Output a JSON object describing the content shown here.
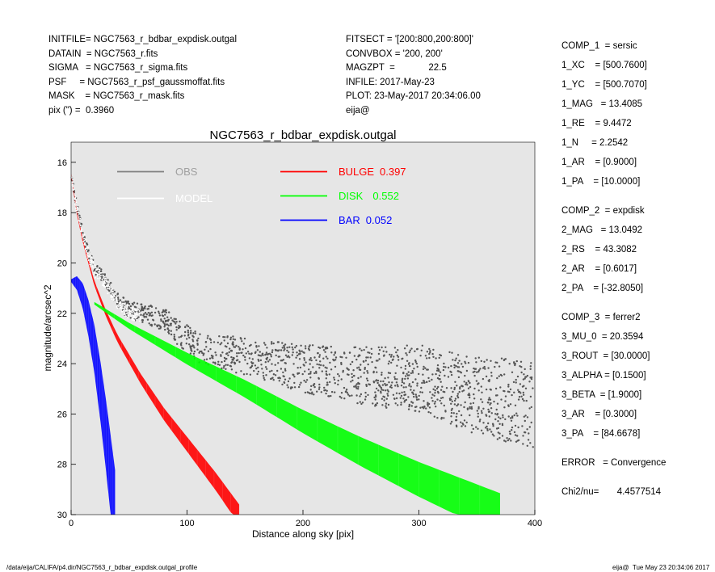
{
  "header_left": [
    "INITFILE= NGC7563_r_bdbar_expdisk.outgal",
    "DATAIN  = NGC7563_r.fits",
    "SIGMA   = NGC7563_r_sigma.fits",
    "PSF     = NGC7563_r_psf_gaussmoffat.fits",
    "MASK    = NGC7563_r_mask.fits",
    "pix (\") =  0.3960"
  ],
  "header_mid": [
    "FITSECT = '[200:800,200:800]'",
    "CONVBOX = '200, 200'",
    "MAGZPT  =             22.5",
    "INFILE: 2017-May-23",
    "PLOT: 23-May-2017 20:34:06.00",
    "eija@"
  ],
  "params": [
    "COMP_1  = sersic",
    "1_XC    = [500.7600]",
    "1_YC    = [500.7070]",
    "1_MAG   = 13.4085",
    "1_RE    = 9.4472",
    "1_N     = 2.2542",
    "1_AR    = [0.9000]",
    "1_PA    = [10.0000]",
    "",
    "COMP_2  = expdisk",
    "2_MAG   = 13.0492",
    "2_RS    = 43.3082",
    "2_AR    = [0.6017]",
    "2_PA    = [-32.8050]",
    "",
    "COMP_3  = ferrer2",
    "3_MU_0  = 20.3594",
    "3_ROUT  = [30.0000]",
    "3_ALPHA = [0.1500]",
    "3_BETA  = [1.9000]",
    "3_AR    = [0.3000]",
    "3_PA    = [84.6678]",
    "",
    "ERROR   = Convergence",
    "",
    "Chi2/nu=       4.4577514"
  ],
  "footer_left": "/data/eija/CALIFA/p4.dir/NGC7563_r_bdbar_expdisk.outgal_profile",
  "footer_right": "eija@  Tue May 23 20:34:06 2017",
  "chart_data": {
    "type": "scatter",
    "title": "NGC7563_r_bdbar_expdisk.outgal",
    "xlabel": "Distance along sky [pix]",
    "ylabel": "magnitude/arcsec^2",
    "xlim": [
      0,
      400
    ],
    "ylim": [
      30,
      15.2
    ],
    "y_inverted": true,
    "x_ticks": [
      "0",
      "100",
      "200",
      "300",
      "400"
    ],
    "y_ticks": [
      "16",
      "18",
      "20",
      "22",
      "24",
      "26",
      "28",
      "30"
    ],
    "x_tick_values": [
      0,
      100,
      200,
      300,
      400
    ],
    "y_tick_values": [
      16,
      18,
      20,
      22,
      24,
      26,
      28,
      30
    ],
    "background": "#e6e6e6",
    "legend": [
      {
        "name": "OBS",
        "value": "",
        "color": "#808080"
      },
      {
        "name": "MODEL",
        "value": "",
        "color": "#ffffff"
      },
      {
        "name": "BULGE",
        "value": "0.397",
        "color": "#ff0000"
      },
      {
        "name": "DISK",
        "value": "0.552",
        "color": "#00ff00"
      },
      {
        "name": "BAR",
        "value": "0.052",
        "color": "#0000ff"
      }
    ],
    "series": [
      {
        "name": "OBS",
        "color": "#555555",
        "x": [
          0,
          3,
          8,
          15,
          20,
          25,
          35,
          40,
          50,
          60,
          80,
          90,
          100,
          110,
          150,
          200,
          250,
          300,
          350,
          400
        ],
        "y": [
          16.4,
          17.3,
          18.4,
          19.6,
          20.2,
          20.4,
          21.1,
          21.5,
          21.9,
          22.0,
          22.2,
          22.7,
          23.0,
          23.4,
          23.7,
          24.2,
          24.5,
          24.6,
          25.3,
          25.6
        ]
      },
      {
        "name": "BULGE",
        "color": "#ff0000",
        "x": [
          0,
          5,
          10,
          20,
          30,
          40,
          60,
          80,
          100,
          125,
          145
        ],
        "y": [
          16.5,
          18.0,
          19.1,
          20.8,
          22.0,
          23.0,
          24.6,
          26.0,
          27.2,
          28.7,
          30.0
        ]
      },
      {
        "name": "DISK",
        "color": "#00ff00",
        "x": [
          20,
          50,
          100,
          150,
          200,
          250,
          300,
          350,
          370
        ],
        "y": [
          21.6,
          22.5,
          23.8,
          25.0,
          26.3,
          27.5,
          28.6,
          29.6,
          30.0
        ]
      },
      {
        "name": "BAR",
        "color": "#0000ff",
        "x": [
          0,
          5,
          10,
          15,
          20,
          25,
          30,
          35,
          38
        ],
        "y": [
          20.7,
          20.8,
          21.3,
          22.2,
          23.4,
          25.0,
          26.8,
          28.8,
          30.0
        ]
      }
    ]
  }
}
